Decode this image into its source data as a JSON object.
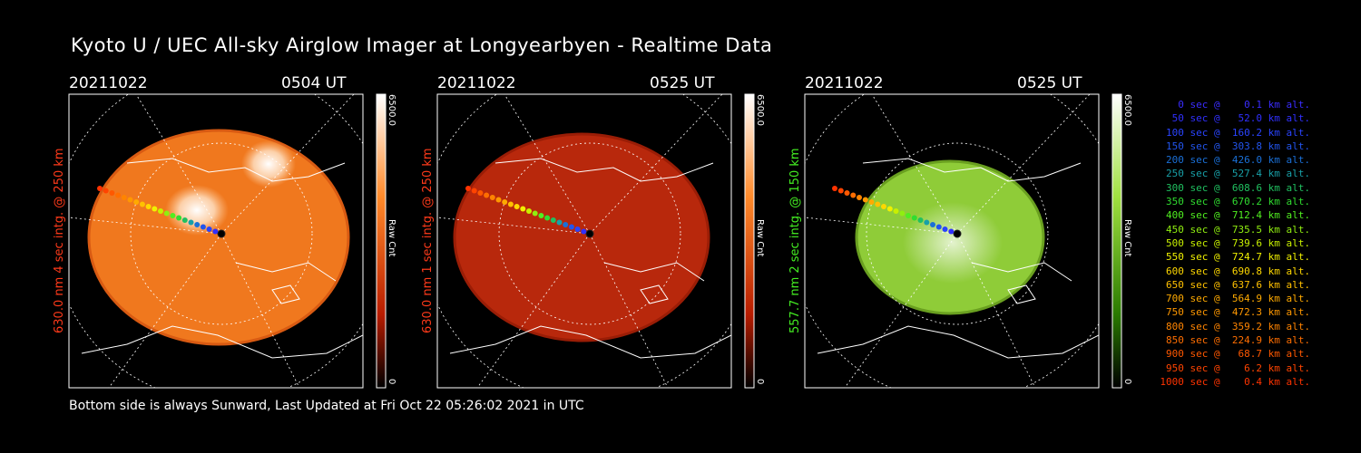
{
  "title": "Kyoto U / UEC All-sky Airglow Imager at Longyearbyen - Realtime Data",
  "footer": "Bottom side is always Sunward, Last Updated at Fri Oct 22 05:26:02 2021 in UTC",
  "panels": [
    {
      "date": "20211022",
      "time": "0504 UT",
      "ylabel": "630.0 nm  4 sec intg. @ 250 km",
      "ylabel_color": "#ff3a1a",
      "colorbar_max": "6500.0",
      "colorbar_min": "0",
      "colorbar_unit": "Raw Cnt",
      "colorbar_color": "#ff6a00",
      "sky_color": "#f0781e",
      "sky_edge": "#d85a12"
    },
    {
      "date": "20211022",
      "time": "0525 UT",
      "ylabel": "630.0 nm  1 sec intg. @ 250 km",
      "ylabel_color": "#ff3a1a",
      "colorbar_max": "6500.0",
      "colorbar_min": "0",
      "colorbar_unit": "Raw Cnt",
      "colorbar_color": "#ff6a00",
      "sky_color": "#b8280c",
      "sky_edge": "#9a1d06"
    },
    {
      "date": "20211022",
      "time": "0525 UT",
      "ylabel": "557.7 nm  2 sec intg. @ 150 km",
      "ylabel_color": "#44ee22",
      "colorbar_max": "6500.0",
      "colorbar_min": "0",
      "colorbar_unit": "Raw Cnt",
      "colorbar_color": "#55aa00",
      "sky_color": "#8fcc38",
      "sky_edge": "#6aa020"
    }
  ],
  "legend": [
    {
      "text": "   0 sec @    0.1 km alt.",
      "color": "#3a2cff"
    },
    {
      "text": "  50 sec @   52.0 km alt.",
      "color": "#3030ff"
    },
    {
      "text": " 100 sec @  160.2 km alt.",
      "color": "#2a44ff"
    },
    {
      "text": " 150 sec @  303.8 km alt.",
      "color": "#2255ee"
    },
    {
      "text": " 200 sec @  426.0 km alt.",
      "color": "#1a70d8"
    },
    {
      "text": " 250 sec @  527.4 km alt.",
      "color": "#18a0a8"
    },
    {
      "text": " 300 sec @  608.6 km alt.",
      "color": "#20c060"
    },
    {
      "text": " 350 sec @  670.2 km alt.",
      "color": "#30dd30"
    },
    {
      "text": " 400 sec @  712.4 km alt.",
      "color": "#50ee20"
    },
    {
      "text": " 450 sec @  735.5 km alt.",
      "color": "#90ee10"
    },
    {
      "text": " 500 sec @  739.6 km alt.",
      "color": "#c8f000"
    },
    {
      "text": " 550 sec @  724.7 km alt.",
      "color": "#f0f000"
    },
    {
      "text": " 600 sec @  690.8 km alt.",
      "color": "#ffd800"
    },
    {
      "text": " 650 sec @  637.6 km alt.",
      "color": "#ffc000"
    },
    {
      "text": " 700 sec @  564.9 km alt.",
      "color": "#ffaa00"
    },
    {
      "text": " 750 sec @  472.3 km alt.",
      "color": "#ff9800"
    },
    {
      "text": " 800 sec @  359.2 km alt.",
      "color": "#ff8400"
    },
    {
      "text": " 850 sec @  224.9 km alt.",
      "color": "#ff6e00"
    },
    {
      "text": " 900 sec @   68.7 km alt.",
      "color": "#ff5800"
    },
    {
      "text": " 950 sec @    6.2 km alt.",
      "color": "#ff4400"
    },
    {
      "text": "1000 sec @    0.4 km alt.",
      "color": "#ff3300"
    }
  ]
}
